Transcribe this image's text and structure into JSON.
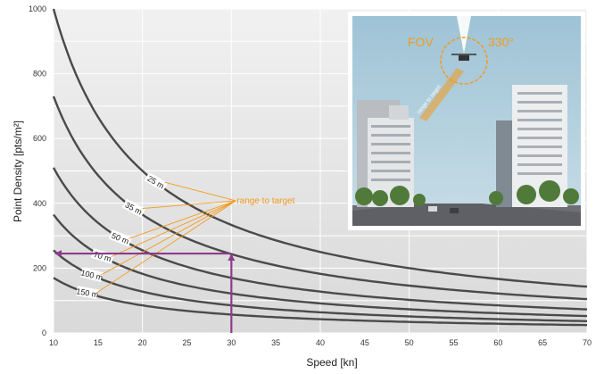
{
  "chart_data": {
    "type": "line",
    "xlabel": "Speed [kn]",
    "ylabel": "Point Density [pts/m²]",
    "xlim": [
      10,
      70
    ],
    "ylim": [
      0,
      1000
    ],
    "x_ticks": [
      "10",
      "15",
      "20",
      "25",
      "30",
      "35",
      "40",
      "45",
      "50",
      "55",
      "60",
      "65",
      "70"
    ],
    "y_ticks": [
      "0",
      "200",
      "400",
      "600",
      "800",
      "1000"
    ],
    "grid": true,
    "series": [
      {
        "name": "25 m",
        "x": [
          10,
          20,
          30,
          40,
          50,
          60,
          70
        ],
        "y": [
          1000,
          500,
          333,
          250,
          200,
          167,
          143
        ]
      },
      {
        "name": "35 m",
        "x": [
          10,
          20,
          30,
          40,
          50,
          60,
          70
        ],
        "y": [
          730,
          365,
          243,
          183,
          146,
          122,
          104
        ]
      },
      {
        "name": "50 m",
        "x": [
          10,
          20,
          30,
          40,
          50,
          60,
          70
        ],
        "y": [
          510,
          255,
          170,
          128,
          102,
          85,
          73
        ]
      },
      {
        "name": "70 m",
        "x": [
          10,
          20,
          30,
          40,
          50,
          60,
          70
        ],
        "y": [
          365,
          183,
          122,
          91,
          73,
          61,
          52
        ]
      },
      {
        "name": "100 m",
        "x": [
          10,
          20,
          30,
          40,
          50,
          60,
          70
        ],
        "y": [
          255,
          128,
          85,
          64,
          51,
          43,
          36
        ]
      },
      {
        "name": "150 m",
        "x": [
          10,
          20,
          30,
          40,
          50,
          60,
          70
        ],
        "y": [
          170,
          85,
          57,
          43,
          34,
          28,
          24
        ]
      }
    ],
    "annotations": [
      {
        "text": "range to target"
      },
      {
        "type": "reading-arrow",
        "x": 30,
        "y": 245
      }
    ]
  },
  "inset": {
    "fov_label": "FOV",
    "angle_label": "330°",
    "range_label": "range to target",
    "colors": {
      "sky": "#a8c8d8",
      "road": "#6e6e74",
      "annotation": "#f39a1c"
    }
  }
}
